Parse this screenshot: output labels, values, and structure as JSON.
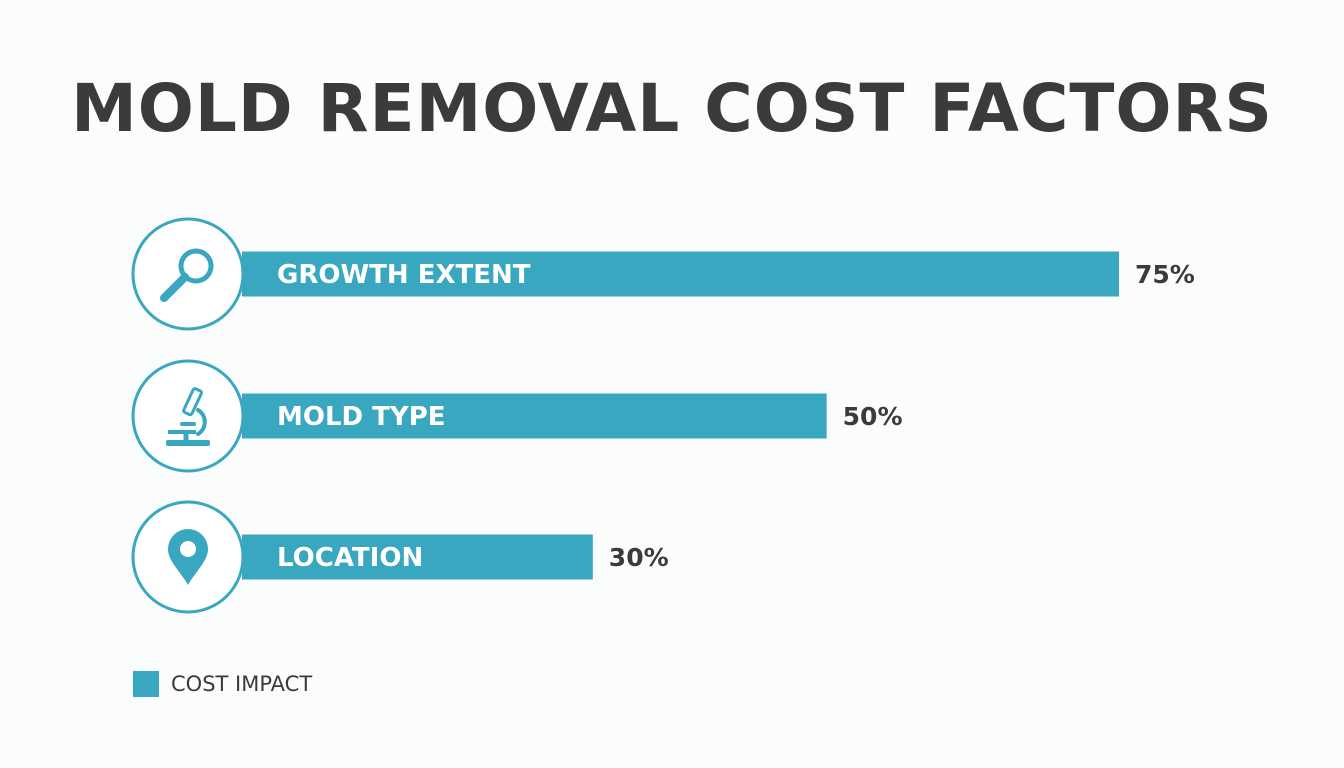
{
  "chart_data": {
    "type": "bar",
    "orientation": "horizontal",
    "title": "MOLD REMOVAL COST FACTORS",
    "categories": [
      "GROWTH EXTENT",
      "MOLD TYPE",
      "LOCATION"
    ],
    "icons": [
      "magnifying-glass-icon",
      "microscope-icon",
      "location-pin-icon"
    ],
    "series": [
      {
        "name": "COST IMPACT",
        "values": [
          75,
          50,
          30
        ]
      }
    ],
    "value_labels": [
      "75%",
      "50%",
      "30%"
    ],
    "legend": "bottom-left",
    "grid": false
  },
  "colors": {
    "bar": "#3aa7c0",
    "text": "#3b3b3b",
    "background": "#fbfcfc"
  }
}
